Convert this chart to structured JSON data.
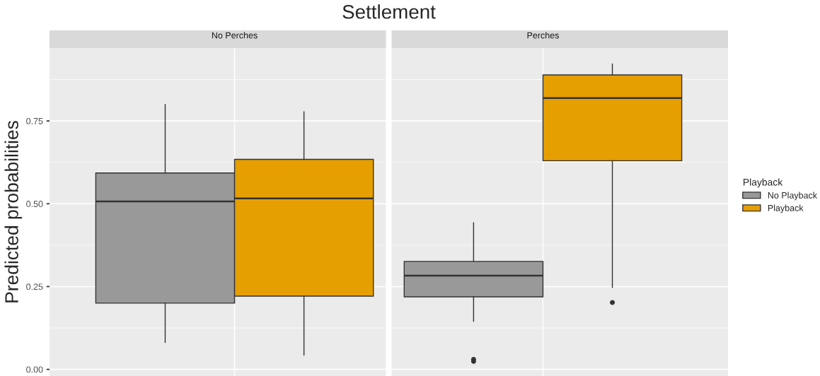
{
  "chart_data": {
    "type": "box",
    "title": "Settlement",
    "ylabel": "Predicted probabilities",
    "categories": [
      "No Perches",
      "Perches"
    ],
    "ylim": [
      -0.02,
      0.97
    ],
    "yticks": [
      {
        "value": 0,
        "label": "0.00"
      },
      {
        "value": 0.25,
        "label": "0.25"
      },
      {
        "value": 0.5,
        "label": "0.50"
      },
      {
        "value": 0.75,
        "label": "0.75"
      }
    ],
    "grid": true,
    "legend": "right",
    "legend_title": "Playback",
    "series": [
      {
        "name": "No Playback",
        "color": "#999999",
        "boxes": [
          {
            "low": 0.081,
            "q1": 0.2,
            "median": 0.507,
            "q3": 0.593,
            "high": 0.8
          },
          {
            "low": 0.145,
            "q1": 0.219,
            "median": 0.283,
            "q3": 0.326,
            "high": 0.443,
            "outliers": [
              0.03,
              0.024
            ]
          }
        ]
      },
      {
        "name": "Playback",
        "color": "#e69f00",
        "boxes": [
          {
            "low": 0.043,
            "q1": 0.221,
            "median": 0.516,
            "q3": 0.634,
            "high": 0.778
          },
          {
            "low": 0.247,
            "q1": 0.63,
            "median": 0.819,
            "q3": 0.889,
            "high": 0.922,
            "outliers": [
              0.202
            ]
          }
        ]
      }
    ]
  }
}
